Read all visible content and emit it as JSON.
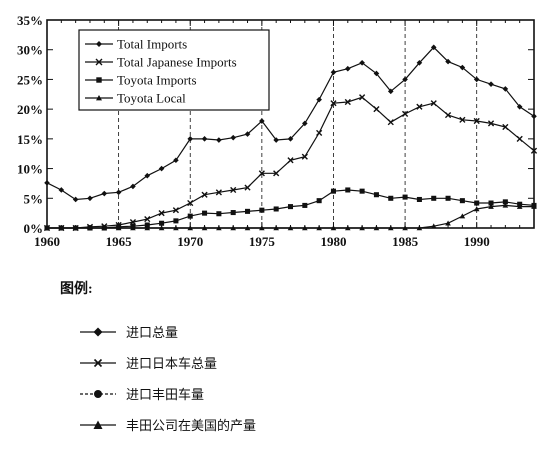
{
  "chart_data": {
    "type": "line",
    "title": "",
    "xlabel": "",
    "ylabel": "",
    "xlim": [
      1960,
      1994
    ],
    "ylim": [
      0,
      35
    ],
    "x_ticks": [
      "1960",
      "1965",
      "1970",
      "1975",
      "1980",
      "1985",
      "1990"
    ],
    "y_ticks": [
      "0%",
      "5%",
      "10%",
      "15%",
      "20%",
      "25%",
      "30%",
      "35%"
    ],
    "grid": "vertical dashed lines at x ticks",
    "legend_position": "top-left",
    "series": [
      {
        "name": "Total Imports",
        "marker": "diamond",
        "x": [
          1960,
          1961,
          1962,
          1963,
          1964,
          1965,
          1966,
          1967,
          1968,
          1969,
          1970,
          1971,
          1972,
          1973,
          1974,
          1975,
          1976,
          1977,
          1978,
          1979,
          1980,
          1981,
          1982,
          1983,
          1984,
          1985,
          1986,
          1987,
          1988,
          1989,
          1990,
          1991,
          1992,
          1993,
          1994
        ],
        "values": [
          7.6,
          6.4,
          4.8,
          5.0,
          5.8,
          6.0,
          7.0,
          8.8,
          10.0,
          11.4,
          15.0,
          15.0,
          14.8,
          15.2,
          15.8,
          18.0,
          14.8,
          15.0,
          17.6,
          21.6,
          26.2,
          26.8,
          27.8,
          26.0,
          23.0,
          25.0,
          27.8,
          30.4,
          28.0,
          27.0,
          25.0,
          24.2,
          23.4,
          20.4,
          18.8
        ]
      },
      {
        "name": "Total Japanese Imports",
        "marker": "cross",
        "x": [
          1960,
          1961,
          1962,
          1963,
          1964,
          1965,
          1966,
          1967,
          1968,
          1969,
          1970,
          1971,
          1972,
          1973,
          1974,
          1975,
          1976,
          1977,
          1978,
          1979,
          1980,
          1981,
          1982,
          1983,
          1984,
          1985,
          1986,
          1987,
          1988,
          1989,
          1990,
          1991,
          1992,
          1993,
          1994
        ],
        "values": [
          0.0,
          0.0,
          0.0,
          0.2,
          0.3,
          0.5,
          1.0,
          1.5,
          2.5,
          3.0,
          4.2,
          5.6,
          6.0,
          6.4,
          6.8,
          9.2,
          9.2,
          11.4,
          12.0,
          16.0,
          21.0,
          21.2,
          22.0,
          20.0,
          17.8,
          19.2,
          20.4,
          21.0,
          19.0,
          18.2,
          18.0,
          17.6,
          17.0,
          15.0,
          13.0
        ]
      },
      {
        "name": "Toyota Imports",
        "marker": "square",
        "x": [
          1960,
          1961,
          1962,
          1963,
          1964,
          1965,
          1966,
          1967,
          1968,
          1969,
          1970,
          1971,
          1972,
          1973,
          1974,
          1975,
          1976,
          1977,
          1978,
          1979,
          1980,
          1981,
          1982,
          1983,
          1984,
          1985,
          1986,
          1987,
          1988,
          1989,
          1990,
          1991,
          1992,
          1993,
          1994
        ],
        "values": [
          0.0,
          0.0,
          0.0,
          0.0,
          0.0,
          0.2,
          0.3,
          0.5,
          0.8,
          1.2,
          2.0,
          2.5,
          2.4,
          2.6,
          2.8,
          3.0,
          3.2,
          3.6,
          3.8,
          4.6,
          6.2,
          6.4,
          6.2,
          5.6,
          5.0,
          5.2,
          4.8,
          5.0,
          5.0,
          4.6,
          4.2,
          4.2,
          4.4,
          4.0,
          3.8
        ]
      },
      {
        "name": "Toyota Local",
        "marker": "triangle",
        "x": [
          1960,
          1961,
          1962,
          1963,
          1964,
          1965,
          1966,
          1967,
          1968,
          1969,
          1970,
          1971,
          1972,
          1973,
          1974,
          1975,
          1976,
          1977,
          1978,
          1979,
          1980,
          1981,
          1982,
          1983,
          1984,
          1985,
          1986,
          1987,
          1988,
          1989,
          1990,
          1991,
          1992,
          1993,
          1994
        ],
        "values": [
          0.0,
          0.0,
          0.0,
          0.0,
          0.0,
          0.0,
          0.0,
          0.0,
          0.0,
          0.0,
          0.0,
          0.0,
          0.0,
          0.0,
          0.0,
          0.0,
          0.0,
          0.0,
          0.0,
          0.0,
          0.0,
          0.0,
          0.0,
          0.0,
          0.0,
          0.0,
          0.0,
          0.3,
          0.8,
          2.0,
          3.2,
          3.6,
          3.8,
          3.6,
          3.6
        ]
      }
    ]
  },
  "caption": {
    "title": "图例:",
    "items": [
      {
        "marker": "diamond",
        "label": "进口总量"
      },
      {
        "marker": "cross",
        "label": "进口日本车总量"
      },
      {
        "marker": "square",
        "label": "进口丰田车量"
      },
      {
        "marker": "triangle",
        "label": "丰田公司在美国的产量"
      }
    ]
  }
}
